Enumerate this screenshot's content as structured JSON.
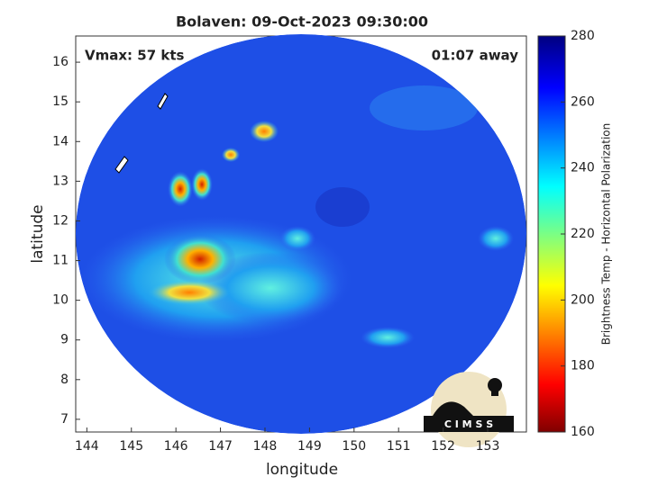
{
  "title": "Bolaven: 09-Oct-2023 09:30:00",
  "annotations": {
    "vmax": "Vmax: 57 kts",
    "time_away": "01:07 away"
  },
  "xlabel": "longitude",
  "ylabel": "latitude",
  "xlim": [
    143.75,
    153.87
  ],
  "xticks": [
    144,
    145,
    146,
    147,
    148,
    149,
    150,
    151,
    152,
    153
  ],
  "ylim": [
    6.68,
    16.66
  ],
  "yticks": [
    7,
    8,
    9,
    10,
    11,
    12,
    13,
    14,
    15,
    16
  ],
  "colorbar": {
    "label": "Brightness Temp - Horizontal Polarization",
    "lim": [
      160,
      280
    ],
    "ticks": [
      160,
      180,
      200,
      220,
      240,
      260,
      280
    ],
    "colormap": "jet"
  },
  "logo": "C I M S S"
}
